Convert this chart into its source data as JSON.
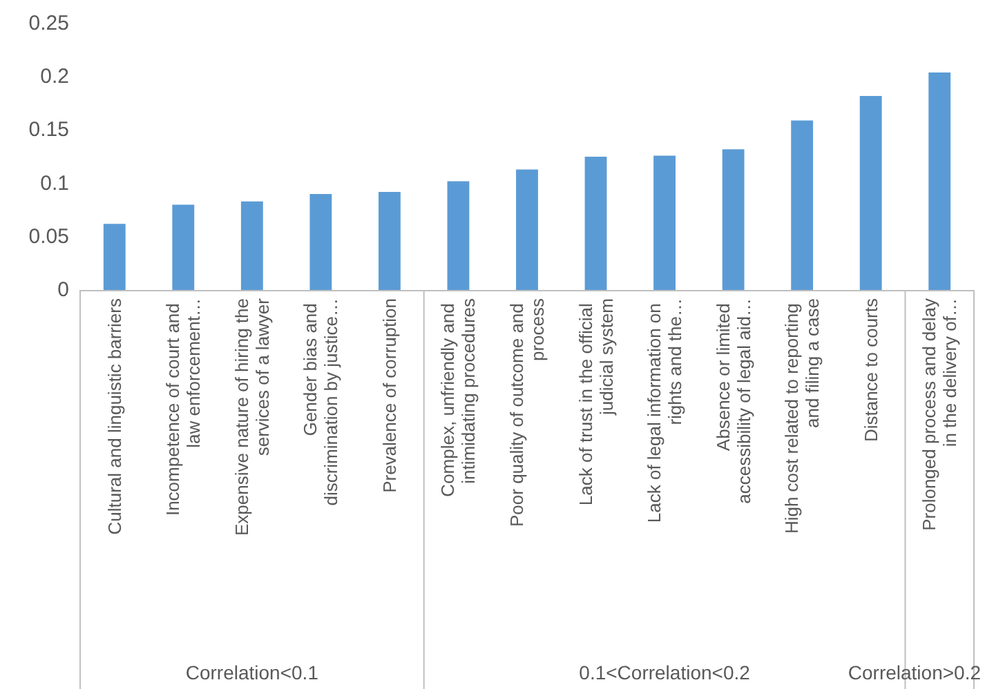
{
  "chart_data": {
    "type": "bar",
    "categories": [
      "Cultural and linguistic barriers",
      "Incompetence of court and law enforcement…",
      "Expensive nature of hiring the services of a lawyer",
      "Gender bias and discrimination by justice…",
      "Prevalence of corruption",
      "Complex, unfriendly and intimidating procedures",
      "Poor quality of outcome and process",
      "Lack of trust in the official judicial system",
      "Lack of legal information on rights and the…",
      "Absence or limited accessibility of legal aid…",
      "High cost related to reporting and filing a case",
      "Distance to courts",
      "Prolonged process and delay in the delivery of…"
    ],
    "values": [
      0.062,
      0.08,
      0.083,
      0.09,
      0.092,
      0.102,
      0.113,
      0.125,
      0.126,
      0.132,
      0.159,
      0.182,
      0.204
    ],
    "color": "#5b9bd5",
    "ylim": [
      0,
      0.25
    ],
    "yticks": [
      0,
      0.05,
      0.1,
      0.15,
      0.2,
      0.25
    ],
    "grid": false,
    "annotations": [
      "Correlation<0.1",
      "0.1<Correlation<0.2",
      "Correlation>0.2"
    ]
  }
}
